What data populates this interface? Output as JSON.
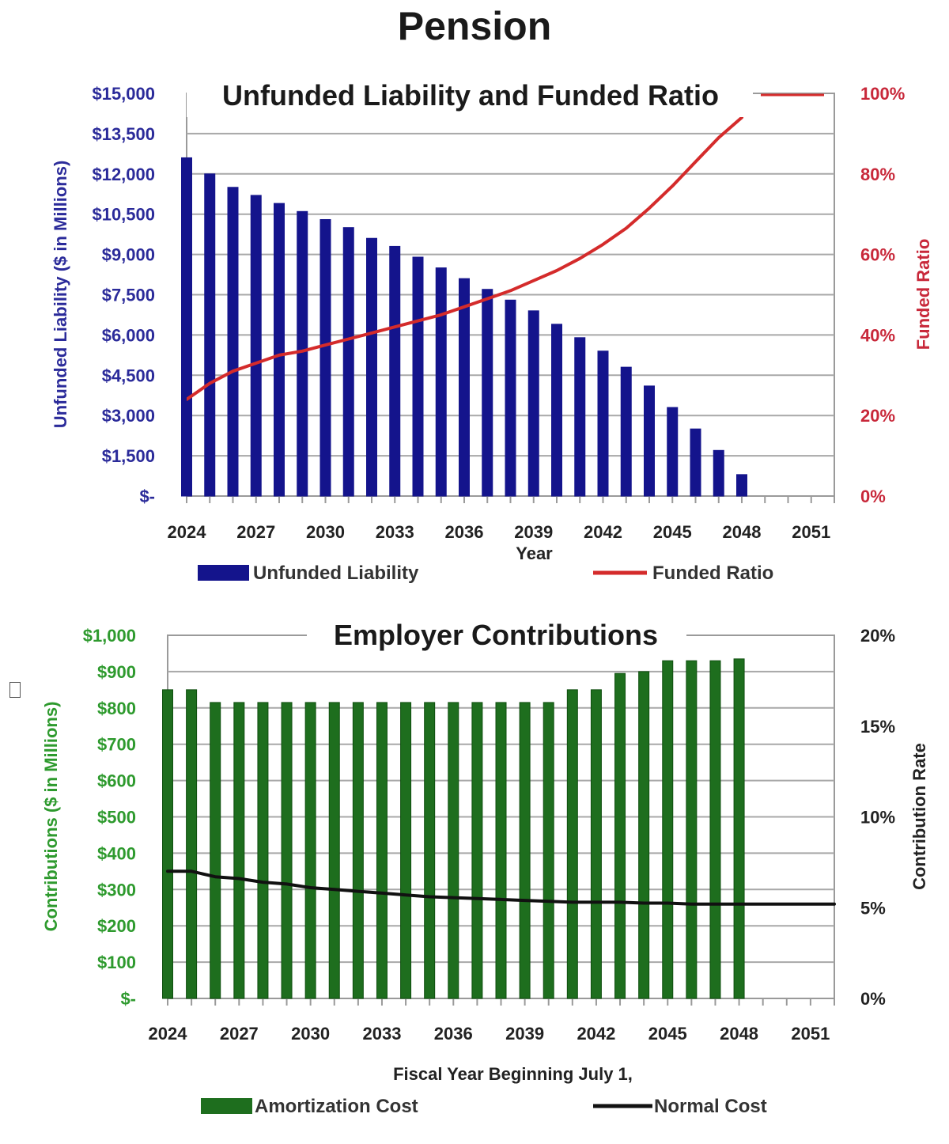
{
  "page": {
    "title": "Pension"
  },
  "chart_data": [
    {
      "type": "bar",
      "title": "Unfunded Liability and Funded Ratio",
      "xlabel": "Year",
      "ylabel": "Unfunded Liability ($ in Millions)",
      "y2label": "Funded Ratio",
      "ylim": [
        0,
        15000
      ],
      "y2lim": [
        0,
        100
      ],
      "y_ticks": [
        "$-",
        "$1,500",
        "$3,000",
        "$4,500",
        "$6,000",
        "$7,500",
        "$9,000",
        "$10,500",
        "$12,000",
        "$13,500",
        "$15,000"
      ],
      "y2_ticks": [
        "0%",
        "20%",
        "40%",
        "60%",
        "80%",
        "100%"
      ],
      "x_ticks": [
        "2024",
        "2027",
        "2030",
        "2033",
        "2036",
        "2039",
        "2042",
        "2045",
        "2048",
        "2051"
      ],
      "x_range": [
        2024,
        2052
      ],
      "grid": true,
      "legend_position": "bottom",
      "colors": {
        "bar": "#14148c",
        "line": "#d42b2b",
        "left_axis": "#2b2b9a",
        "right_axis": "#c8283a"
      },
      "series": [
        {
          "name": "Unfunded Liability",
          "kind": "bar",
          "axis": "left",
          "x": [
            2024,
            2025,
            2026,
            2027,
            2028,
            2029,
            2030,
            2031,
            2032,
            2033,
            2034,
            2035,
            2036,
            2037,
            2038,
            2039,
            2040,
            2041,
            2042,
            2043,
            2044,
            2045,
            2046,
            2047,
            2048
          ],
          "values": [
            12600,
            12000,
            11500,
            11200,
            10900,
            10600,
            10300,
            10000,
            9600,
            9300,
            8900,
            8500,
            8100,
            7700,
            7300,
            6900,
            6400,
            5900,
            5400,
            4800,
            4100,
            3300,
            2500,
            1700,
            800
          ]
        },
        {
          "name": "Funded Ratio",
          "kind": "line",
          "axis": "right",
          "x": [
            2024,
            2025,
            2026,
            2027,
            2028,
            2029,
            2030,
            2031,
            2032,
            2033,
            2034,
            2035,
            2036,
            2037,
            2038,
            2039,
            2040,
            2041,
            2042,
            2043,
            2044,
            2045,
            2046,
            2047,
            2048
          ],
          "values": [
            24,
            28,
            31,
            33,
            35,
            36,
            37.5,
            39,
            40.5,
            42,
            43.5,
            45,
            47,
            49,
            51,
            53.5,
            56,
            59,
            62.5,
            66.5,
            71.5,
            77,
            83,
            89,
            94
          ]
        }
      ]
    },
    {
      "type": "bar",
      "title": "Employer Contributions",
      "xlabel": "Fiscal Year Beginning July 1,",
      "ylabel": "Contributions ($ in Millions)",
      "y2label": "Contribution Rate",
      "ylim": [
        0,
        1000
      ],
      "y2lim": [
        0,
        20
      ],
      "y_ticks": [
        "$-",
        "$100",
        "$200",
        "$300",
        "$400",
        "$500",
        "$600",
        "$700",
        "$800",
        "$900",
        "$1,000"
      ],
      "y2_ticks": [
        "0%",
        "5%",
        "10%",
        "15%",
        "20%"
      ],
      "x_ticks": [
        "2024",
        "2027",
        "2030",
        "2033",
        "2036",
        "2039",
        "2042",
        "2045",
        "2048",
        "2051"
      ],
      "x_range": [
        2024,
        2052
      ],
      "grid": true,
      "legend_position": "bottom",
      "colors": {
        "bar": "#1e6e1e",
        "bar_edge": "#0f4f0f",
        "line": "#111111",
        "left_axis": "#2e9a2e",
        "right_axis": "#222222"
      },
      "series": [
        {
          "name": "Amortization Cost",
          "kind": "bar",
          "axis": "left",
          "x": [
            2024,
            2025,
            2026,
            2027,
            2028,
            2029,
            2030,
            2031,
            2032,
            2033,
            2034,
            2035,
            2036,
            2037,
            2038,
            2039,
            2040,
            2041,
            2042,
            2043,
            2044,
            2045,
            2046,
            2047,
            2048
          ],
          "values": [
            850,
            850,
            815,
            815,
            815,
            815,
            815,
            815,
            815,
            815,
            815,
            815,
            815,
            815,
            815,
            815,
            815,
            850,
            850,
            895,
            900,
            930,
            930,
            930,
            935
          ]
        },
        {
          "name": "Normal Cost",
          "kind": "line",
          "axis": "right",
          "x": [
            2024,
            2025,
            2026,
            2027,
            2028,
            2029,
            2030,
            2031,
            2032,
            2033,
            2034,
            2035,
            2036,
            2037,
            2038,
            2039,
            2040,
            2041,
            2042,
            2043,
            2044,
            2045,
            2046,
            2047,
            2048,
            2049,
            2050,
            2051,
            2052
          ],
          "values": [
            7.0,
            7.0,
            6.7,
            6.6,
            6.4,
            6.3,
            6.1,
            6.0,
            5.9,
            5.8,
            5.7,
            5.6,
            5.55,
            5.5,
            5.45,
            5.4,
            5.35,
            5.3,
            5.3,
            5.3,
            5.25,
            5.25,
            5.2,
            5.2,
            5.2,
            5.2,
            5.2,
            5.2,
            5.2
          ]
        }
      ]
    }
  ]
}
